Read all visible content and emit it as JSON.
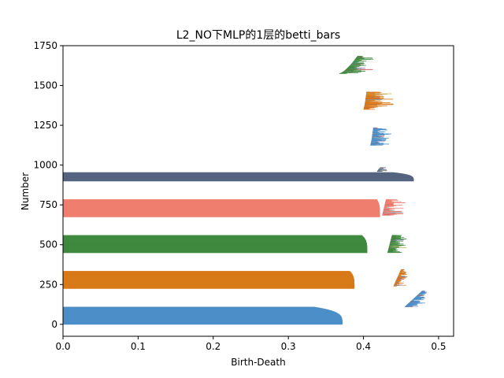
{
  "chart_data": {
    "type": "bar",
    "orientation": "horizontal",
    "title": "L2_NO下MLP的1层的betti_bars",
    "xlabel": "Birth-Death",
    "ylabel": "Number",
    "xlim": [
      0,
      0.52
    ],
    "ylim": [
      -75,
      1750
    ],
    "xticks": [
      "0.0",
      "0.1",
      "0.2",
      "0.3",
      "0.4",
      "0.5"
    ],
    "yticks": [
      "0",
      "250",
      "500",
      "750",
      "1000",
      "1250",
      "1500",
      "1750"
    ],
    "grid": false,
    "legend": "none",
    "groups": [
      {
        "color": "#4c8fc9",
        "dim0": {
          "start": 0,
          "count": 110,
          "max": 0.372,
          "min": 0.335
        },
        "dim1": {
          "start": 110,
          "count": 100,
          "birth": [
            0.455,
            0.478
          ],
          "death": [
            0.47,
            0.485
          ]
        }
      },
      {
        "color": "#d97a1a",
        "dim0": {
          "start": 225,
          "count": 110,
          "max": 0.388,
          "min": 0.382
        },
        "dim1": {
          "start": 240,
          "count": 105,
          "birth": [
            0.44,
            0.45
          ],
          "death": [
            0.45,
            0.458
          ]
        }
      },
      {
        "color": "#3f8a3f",
        "dim0": {
          "start": 450,
          "count": 110,
          "max": 0.405,
          "min": 0.398
        },
        "dim1": {
          "start": 450,
          "count": 110,
          "birth": [
            0.432,
            0.438
          ],
          "death": [
            0.44,
            0.458
          ]
        }
      },
      {
        "color": "#f07f70",
        "dim0": {
          "start": 675,
          "count": 110,
          "max": 0.422,
          "min": 0.418
        },
        "dim1": {
          "start": 685,
          "count": 100,
          "birth": [
            0.425,
            0.43
          ],
          "death": [
            0.432,
            0.46
          ]
        }
      },
      {
        "color": "#566580",
        "dim0": {
          "start": 900,
          "count": 55,
          "max": 0.467,
          "min": 0.44
        },
        "dim1": {
          "start": 960,
          "count": 25,
          "birth": [
            0.418,
            0.422
          ],
          "death": [
            0.422,
            0.435
          ]
        }
      },
      {
        "color": "#4c8fc9",
        "dim0": {
          "start": 1125,
          "count": 110,
          "max": 0.44,
          "min": 0.42
        },
        "dim1": null
      },
      {
        "color": "#d97a1a",
        "dim0": {
          "start": 1350,
          "count": 110,
          "max": 0.44,
          "min": 0.42
        },
        "dim1": null
      },
      {
        "color": "#3f8a3f",
        "dim0": {
          "start": 1575,
          "count": 110,
          "max": 0.41,
          "min": 0.4
        },
        "dim1": null
      }
    ],
    "accent_colors": [
      "#c44e52",
      "#8172b2",
      "#ccb974",
      "#64b5cd"
    ]
  }
}
